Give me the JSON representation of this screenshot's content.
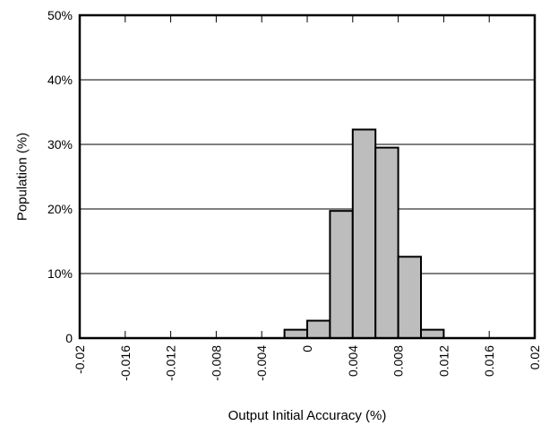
{
  "chart_data": {
    "type": "bar",
    "title": "",
    "xlabel": "Output Initial Accuracy (%)",
    "ylabel": "Population (%)",
    "xlim": [
      -0.02,
      0.02
    ],
    "ylim": [
      0,
      50
    ],
    "x_ticks": [
      "-0.02",
      "-0.016",
      "-0.012",
      "-0.008",
      "-0.004",
      "0",
      "0.004",
      "0.008",
      "0.012",
      "0.016",
      "0.02"
    ],
    "y_ticks": [
      "0",
      "10%",
      "20%",
      "30%",
      "40%",
      "50%"
    ],
    "bin_width": 0.002,
    "bins": [
      {
        "center": -0.001,
        "value": 1.3
      },
      {
        "center": 0.001,
        "value": 2.7
      },
      {
        "center": 0.003,
        "value": 19.7
      },
      {
        "center": 0.005,
        "value": 32.3
      },
      {
        "center": 0.007,
        "value": 29.5
      },
      {
        "center": 0.009,
        "value": 12.6
      },
      {
        "center": 0.011,
        "value": 1.3
      }
    ],
    "grid": "horizontal",
    "legend": "none",
    "colors": {
      "bar_fill": "#bdbdbd",
      "bar_stroke": "#000000",
      "grid": "#000000"
    }
  }
}
